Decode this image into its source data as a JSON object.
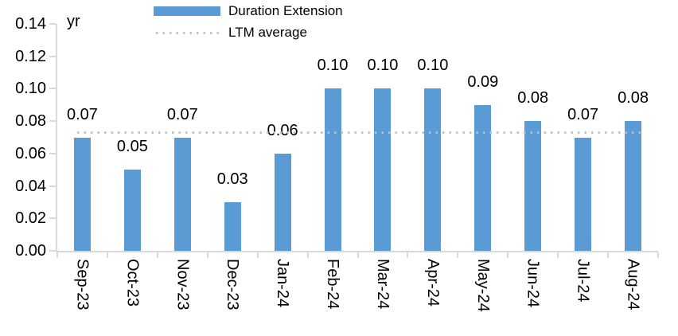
{
  "chart_data": {
    "type": "bar",
    "unit_label": "yr",
    "categories": [
      "Sep-23",
      "Oct-23",
      "Nov-23",
      "Dec-23",
      "Jan-24",
      "Feb-24",
      "Mar-24",
      "Apr-24",
      "May-24",
      "Jun-24",
      "Jul-24",
      "Aug-24"
    ],
    "series": [
      {
        "name": "Duration Extension",
        "values": [
          0.07,
          0.05,
          0.07,
          0.03,
          0.06,
          0.1,
          0.1,
          0.1,
          0.09,
          0.08,
          0.07,
          0.08
        ]
      }
    ],
    "data_labels": [
      "0.07",
      "0.05",
      "0.07",
      "0.03",
      "0.06",
      "0.10",
      "0.10",
      "0.10",
      "0.09",
      "0.08",
      "0.07",
      "0.08"
    ],
    "ltm_average": {
      "name": "LTM average",
      "value": 0.073
    },
    "y_axis": {
      "min": 0.0,
      "max": 0.14,
      "step": 0.02,
      "tick_labels": [
        "0.14",
        "0.12",
        "0.10",
        "0.08",
        "0.06",
        "0.04",
        "0.02",
        "0.00"
      ]
    },
    "legend": {
      "position": "top",
      "entries": [
        "Duration Extension",
        "LTM average"
      ]
    },
    "grid": false,
    "x_labels_rotation_deg": 90,
    "colors": {
      "bar": "#5B9BD5",
      "ltm_line": "#BFBFBF",
      "axis": "#D9D9D9",
      "text": "#000000"
    }
  }
}
